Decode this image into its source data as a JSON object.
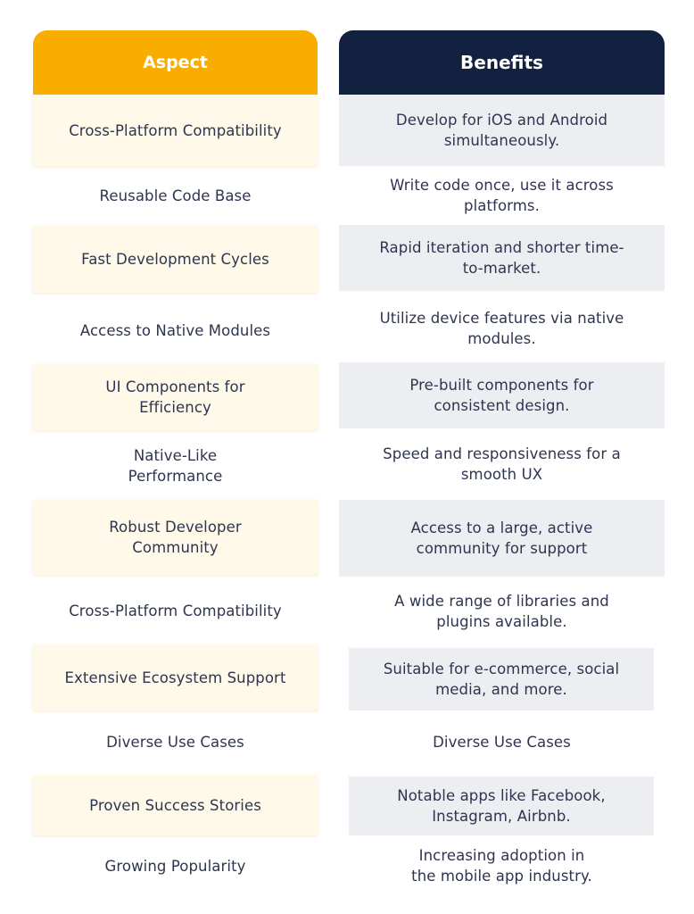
{
  "headers": {
    "aspect": "Aspect",
    "benefits": "Benefits"
  },
  "rows": [
    {
      "aspect": "Cross-Platform Compatibility",
      "benefit": "Develop for iOS and Android simultaneously."
    },
    {
      "aspect": "Reusable Code Base",
      "benefit": "Write code once, use it across platforms."
    },
    {
      "aspect": "Fast Development Cycles",
      "benefit": "Rapid iteration and shorter time-to-market."
    },
    {
      "aspect": "Access to Native Modules",
      "benefit": "Utilize device features via native modules."
    },
    {
      "aspect": "UI Components for Efficiency",
      "benefit": "Pre-built components for consistent design."
    },
    {
      "aspect": "Native-Like Performance",
      "benefit": "Speed and responsiveness for a smooth UX"
    },
    {
      "aspect": "Robust Developer Community",
      "benefit": "Access to a large, active community for support"
    },
    {
      "aspect": "Cross-Platform Compatibility",
      "benefit": "A wide range of libraries and plugins available."
    },
    {
      "aspect": "Extensive Ecosystem Support",
      "benefit": "Suitable for e-commerce, social media, and more."
    },
    {
      "aspect": "Diverse Use Cases",
      "benefit": "Diverse Use Cases"
    },
    {
      "aspect": "Proven Success Stories",
      "benefit": "Notable apps like Facebook, Instagram, Airbnb."
    },
    {
      "aspect": "Growing Popularity",
      "benefit": "Increasing adoption in the mobile app industry."
    }
  ],
  "colors": {
    "aspect_header": "#f8ad00",
    "benefit_header": "#12213f",
    "aspect_shade": "#fff9ea",
    "benefit_shade": "#eceef2",
    "text": "#2e3550"
  }
}
